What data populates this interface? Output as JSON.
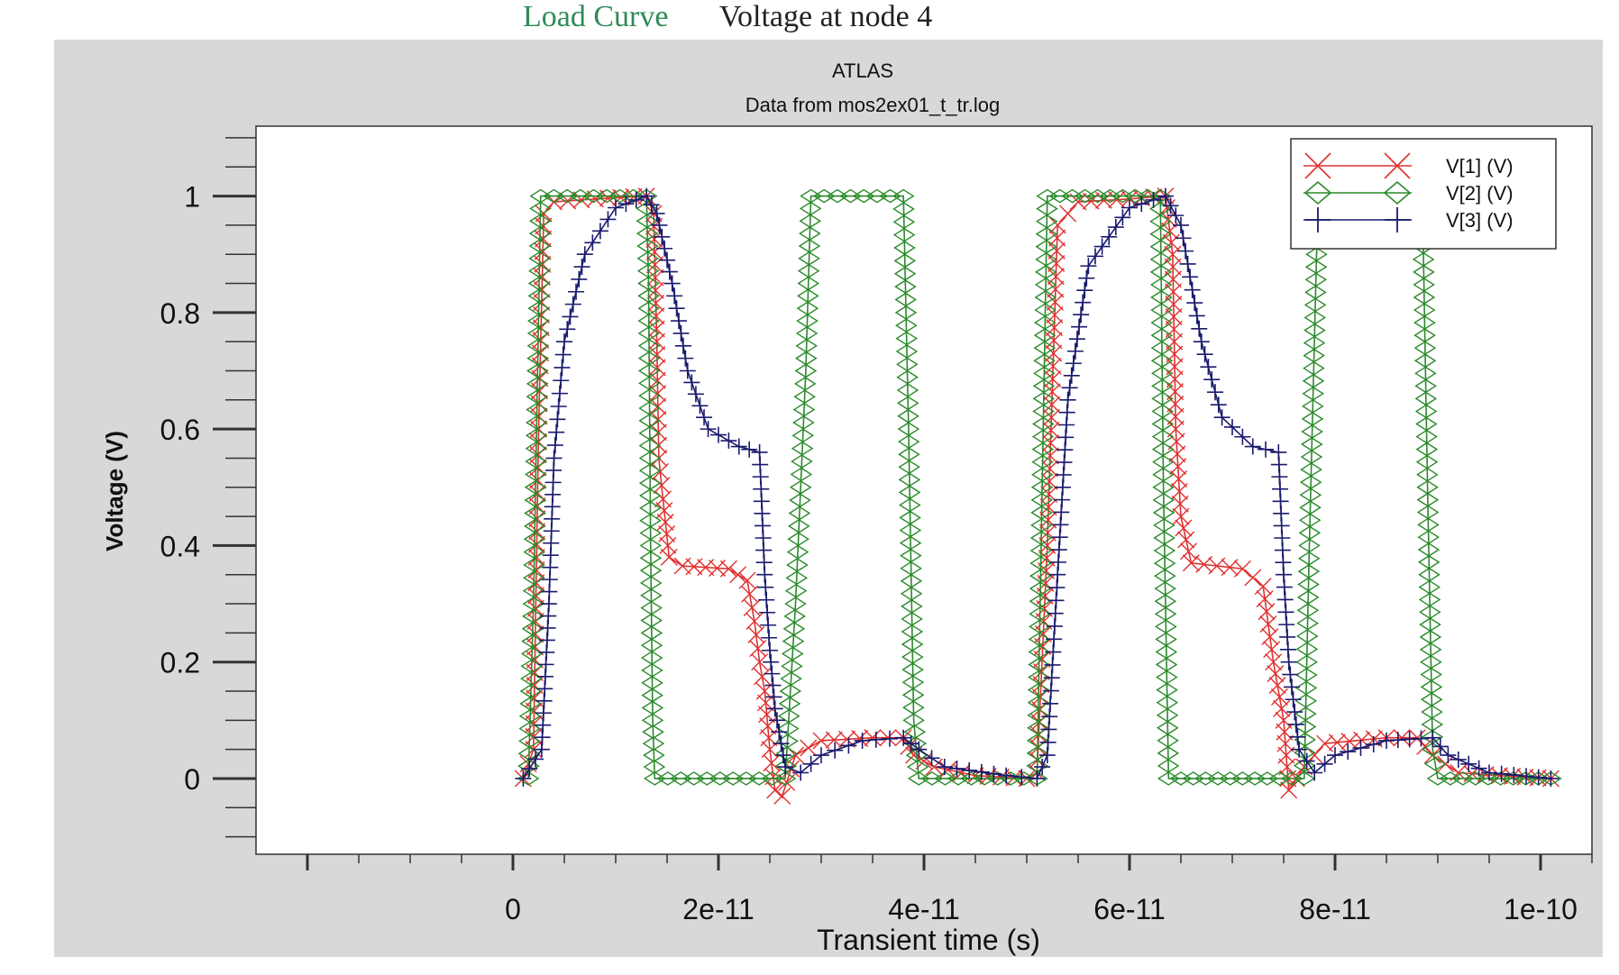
{
  "page": {
    "caption_left": "Load Curve",
    "caption_right": "Voltage at node 4"
  },
  "chart_data": {
    "type": "line",
    "title": "ATLAS",
    "subtitle": "Data from mos2ex01_t_tr.log",
    "xlabel": "Transient time (s)",
    "ylabel": "Voltage (V)",
    "xlim": [
      -2.5e-11,
      1.05e-10
    ],
    "ylim": [
      -0.13,
      1.12
    ],
    "xticks": [
      {
        "value": 0,
        "label": "0"
      },
      {
        "value": 2e-11,
        "label": "2e-11"
      },
      {
        "value": 4e-11,
        "label": "4e-11"
      },
      {
        "value": 6e-11,
        "label": "6e-11"
      },
      {
        "value": 8e-11,
        "label": "8e-11"
      },
      {
        "value": 1e-10,
        "label": "1e-10"
      }
    ],
    "yticks": [
      {
        "value": 0,
        "label": "0"
      },
      {
        "value": 0.2,
        "label": "0.2"
      },
      {
        "value": 0.4,
        "label": "0.4"
      },
      {
        "value": 0.6,
        "label": "0.6"
      },
      {
        "value": 0.8,
        "label": "0.8"
      },
      {
        "value": 1,
        "label": "1"
      }
    ],
    "grid": false,
    "legend_position": "top-right",
    "series": [
      {
        "name": "V[1] (V)",
        "color": "#e03030",
        "marker": "x",
        "points": [
          [
            1e-12,
            0
          ],
          [
            2e-12,
            0.05
          ],
          [
            2.5e-12,
            0.6
          ],
          [
            3e-12,
            0.97
          ],
          [
            4e-12,
            0.99
          ],
          [
            8e-12,
            0.995
          ],
          [
            1.3e-11,
            1
          ],
          [
            1.37e-11,
            0.97
          ],
          [
            1.4e-11,
            0.75
          ],
          [
            1.42e-11,
            0.55
          ],
          [
            1.46e-11,
            0.48
          ],
          [
            1.52e-11,
            0.38
          ],
          [
            1.65e-11,
            0.365
          ],
          [
            2.1e-11,
            0.36
          ],
          [
            2.28e-11,
            0.34
          ],
          [
            2.35e-11,
            0.27
          ],
          [
            2.4e-11,
            0.2
          ],
          [
            2.45e-11,
            0.15
          ],
          [
            2.5e-11,
            0.05
          ],
          [
            2.55e-11,
            -0.02
          ],
          [
            2.62e-11,
            -0.03
          ],
          [
            2.75e-11,
            0.04
          ],
          [
            3e-11,
            0.065
          ],
          [
            3.5e-11,
            0.07
          ],
          [
            3.8e-11,
            0.07
          ],
          [
            3.9e-11,
            0.04
          ],
          [
            4.1e-11,
            0.02
          ],
          [
            4.5e-11,
            0.005
          ],
          [
            5e-11,
            0
          ],
          [
            5.1e-11,
            0.01
          ],
          [
            5.2e-11,
            0.4
          ],
          [
            5.3e-11,
            0.95
          ],
          [
            5.5e-11,
            0.99
          ],
          [
            6e-11,
            0.995
          ],
          [
            6.35e-11,
            1
          ],
          [
            6.42e-11,
            0.9
          ],
          [
            6.45e-11,
            0.6
          ],
          [
            6.5e-11,
            0.45
          ],
          [
            6.6e-11,
            0.37
          ],
          [
            7.1e-11,
            0.36
          ],
          [
            7.3e-11,
            0.33
          ],
          [
            7.4e-11,
            0.2
          ],
          [
            7.5e-11,
            0.1
          ],
          [
            7.55e-11,
            -0.02
          ],
          [
            7.7e-11,
            0.02
          ],
          [
            7.9e-11,
            0.06
          ],
          [
            8.5e-11,
            0.07
          ],
          [
            8.8e-11,
            0.07
          ],
          [
            8.95e-11,
            0.04
          ],
          [
            9.2e-11,
            0.01
          ],
          [
            9.6e-11,
            0.005
          ],
          [
            1.01e-10,
            0
          ]
        ]
      },
      {
        "name": "V[2] (V)",
        "color": "#2a8a2a",
        "marker": "diamond",
        "points": [
          [
            1.5e-12,
            0
          ],
          [
            2e-12,
            0.3
          ],
          [
            2.4e-12,
            0.7
          ],
          [
            2.7e-12,
            1
          ],
          [
            1.3e-11,
            1
          ],
          [
            1.32e-11,
            0.85
          ],
          [
            1.34e-11,
            0.4
          ],
          [
            1.36e-11,
            0.1
          ],
          [
            1.38e-11,
            0
          ],
          [
            2.65e-11,
            0
          ],
          [
            2.75e-11,
            0.3
          ],
          [
            2.85e-11,
            0.7
          ],
          [
            2.9e-11,
            1
          ],
          [
            3.8e-11,
            1
          ],
          [
            3.85e-11,
            0.6
          ],
          [
            3.9e-11,
            0.1
          ],
          [
            3.95e-11,
            0
          ],
          [
            5.1e-11,
            0
          ],
          [
            5.15e-11,
            0.5
          ],
          [
            5.2e-11,
            1
          ],
          [
            6.3e-11,
            1
          ],
          [
            6.33e-11,
            0.5
          ],
          [
            6.38e-11,
            0
          ],
          [
            7.7e-11,
            0
          ],
          [
            7.75e-11,
            0.4
          ],
          [
            7.82e-11,
            0.9
          ],
          [
            7.85e-11,
            1
          ],
          [
            8.85e-11,
            1
          ],
          [
            8.9e-11,
            0.5
          ],
          [
            8.95e-11,
            0.05
          ],
          [
            9e-11,
            0
          ],
          [
            1.01e-10,
            0
          ]
        ]
      },
      {
        "name": "V[3] (V)",
        "color": "#1a1a6e",
        "marker": "plus",
        "points": [
          [
            1e-12,
            0
          ],
          [
            2.8e-12,
            0.05
          ],
          [
            3.5e-12,
            0.3
          ],
          [
            4e-12,
            0.55
          ],
          [
            5e-12,
            0.75
          ],
          [
            7e-12,
            0.9
          ],
          [
            1e-11,
            0.98
          ],
          [
            1.3e-11,
            1
          ],
          [
            1.4e-11,
            0.97
          ],
          [
            1.55e-11,
            0.85
          ],
          [
            1.7e-11,
            0.7
          ],
          [
            1.9e-11,
            0.6
          ],
          [
            2.2e-11,
            0.57
          ],
          [
            2.4e-11,
            0.56
          ],
          [
            2.45e-11,
            0.35
          ],
          [
            2.5e-11,
            0.22
          ],
          [
            2.55e-11,
            0.12
          ],
          [
            2.65e-11,
            0.02
          ],
          [
            2.8e-11,
            0.01
          ],
          [
            3e-11,
            0.04
          ],
          [
            3.4e-11,
            0.065
          ],
          [
            3.8e-11,
            0.07
          ],
          [
            3.95e-11,
            0.05
          ],
          [
            4.2e-11,
            0.02
          ],
          [
            4.8e-11,
            0.005
          ],
          [
            5.1e-11,
            0
          ],
          [
            5.2e-11,
            0.04
          ],
          [
            5.3e-11,
            0.35
          ],
          [
            5.4e-11,
            0.65
          ],
          [
            5.6e-11,
            0.88
          ],
          [
            6e-11,
            0.98
          ],
          [
            6.35e-11,
            1
          ],
          [
            6.5e-11,
            0.95
          ],
          [
            6.7e-11,
            0.75
          ],
          [
            6.9e-11,
            0.62
          ],
          [
            7.2e-11,
            0.57
          ],
          [
            7.45e-11,
            0.56
          ],
          [
            7.5e-11,
            0.35
          ],
          [
            7.55e-11,
            0.2
          ],
          [
            7.65e-11,
            0.05
          ],
          [
            7.8e-11,
            0.01
          ],
          [
            8e-11,
            0.04
          ],
          [
            8.5e-11,
            0.065
          ],
          [
            8.95e-11,
            0.07
          ],
          [
            9.1e-11,
            0.04
          ],
          [
            9.5e-11,
            0.01
          ],
          [
            1.01e-10,
            0
          ]
        ]
      }
    ]
  }
}
